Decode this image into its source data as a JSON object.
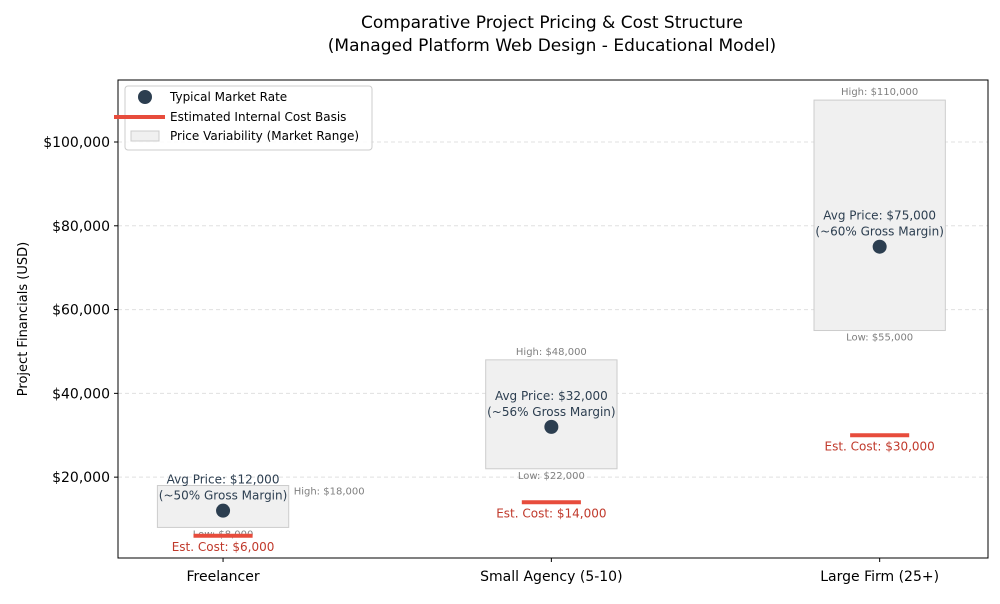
{
  "chart_data": {
    "type": "range-bar-point",
    "title": "Comparative Project Pricing & Cost Structure",
    "subtitle": "(Managed Platform Web Design - Educational Model)",
    "xlabel": "",
    "ylabel": "Project Financials (USD)",
    "ylim": [
      700,
      114800
    ],
    "yticks": [
      20000,
      40000,
      60000,
      80000,
      100000
    ],
    "ytick_labels": [
      "$20,000",
      "$40,000",
      "$60,000",
      "$80,000",
      "$100,000"
    ],
    "grid": "horizontal dashed",
    "legend_position": "top-left",
    "legend": [
      "Typical Market Rate",
      "Estimated Internal Cost Basis",
      "Price Variability (Market Range)"
    ],
    "categories": [
      "Freelancer",
      "Small Agency (5-10)",
      "Large Firm (25+)"
    ],
    "avg_price": [
      12000,
      32000,
      75000
    ],
    "low": [
      8000,
      22000,
      55000
    ],
    "high": [
      18000,
      48000,
      110000
    ],
    "est_cost": [
      6000,
      14000,
      30000
    ],
    "avg_labels": [
      "Avg Price: $12,000",
      "Avg Price: $32,000",
      "Avg Price: $75,000"
    ],
    "margin_labels": [
      "(~50% Gross Margin)",
      "(~56% Gross Margin)",
      "(~60% Gross Margin)"
    ],
    "high_labels": [
      "High: $18,000",
      "High: $48,000",
      "High: $110,000"
    ],
    "low_labels": [
      "Low: $8,000",
      "Low: $22,000",
      "Low: $55,000"
    ],
    "cost_labels": [
      "Est. Cost: $6,000",
      "Est. Cost: $14,000",
      "Est. Cost: $30,000"
    ],
    "colors": {
      "point": "#2c3e50",
      "cost": "#e74c3c",
      "cost_text": "#c0392b",
      "box": "#f0f0f0",
      "box_edge": "#cccccc",
      "range_text": "#7f7f7f"
    }
  }
}
